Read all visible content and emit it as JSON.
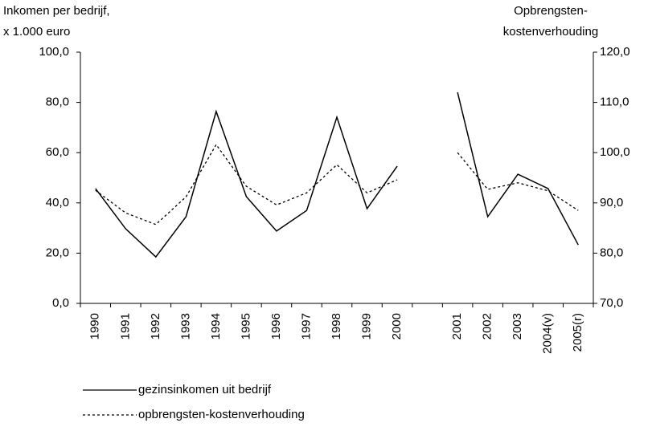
{
  "chart_data": {
    "type": "line",
    "y_axis_label": [
      "Inkomen per bedrijf,",
      "x 1.000 euro"
    ],
    "y2_axis_label": [
      "Opbrengsten-",
      "kostenverhouding"
    ],
    "categories": [
      "1990",
      "1991",
      "1992",
      "1993",
      "1994",
      "1995",
      "1996",
      "1997",
      "1998",
      "1999",
      "2000",
      null,
      "2001",
      "2002",
      "2003",
      "2004(v)",
      "2005(r)"
    ],
    "series": [
      {
        "name": "gezinsinkomen uit bedrijf",
        "color": "#000000",
        "dash": "solid",
        "values": [
          45.7,
          29.7,
          18.5,
          34.5,
          76.4,
          42.5,
          28.8,
          37.0,
          74.1,
          37.7,
          54.6,
          null,
          84.0,
          34.5,
          51.4,
          45.7,
          23.3
        ]
      },
      {
        "name": "opbrengsten-kostenverhouding",
        "color": "#000000",
        "dash": "dotted",
        "axis": "y2",
        "values": [
          92.5,
          88.0,
          85.7,
          91.2,
          101.6,
          93.3,
          89.6,
          92.0,
          97.6,
          92.0,
          94.6,
          null,
          100.0,
          92.7,
          94.0,
          92.4,
          88.5
        ]
      }
    ],
    "ylim": [
      0,
      100
    ],
    "yticks": [
      {
        "value": 0,
        "label": "0,0"
      },
      {
        "value": 20,
        "label": "20,0"
      },
      {
        "value": 40,
        "label": "40,0"
      },
      {
        "value": 60,
        "label": "60,0"
      },
      {
        "value": 80,
        "label": "80,0"
      },
      {
        "value": 100,
        "label": "100,0"
      }
    ],
    "y2lim": [
      70,
      120
    ],
    "y2ticks": [
      {
        "value": 70,
        "label": "70,0"
      },
      {
        "value": 80,
        "label": "80,0"
      },
      {
        "value": 90,
        "label": "90,0"
      },
      {
        "value": 100,
        "label": "100,0"
      },
      {
        "value": 110,
        "label": "110,0"
      },
      {
        "value": 120,
        "label": "120,0"
      }
    ],
    "grid": false
  }
}
